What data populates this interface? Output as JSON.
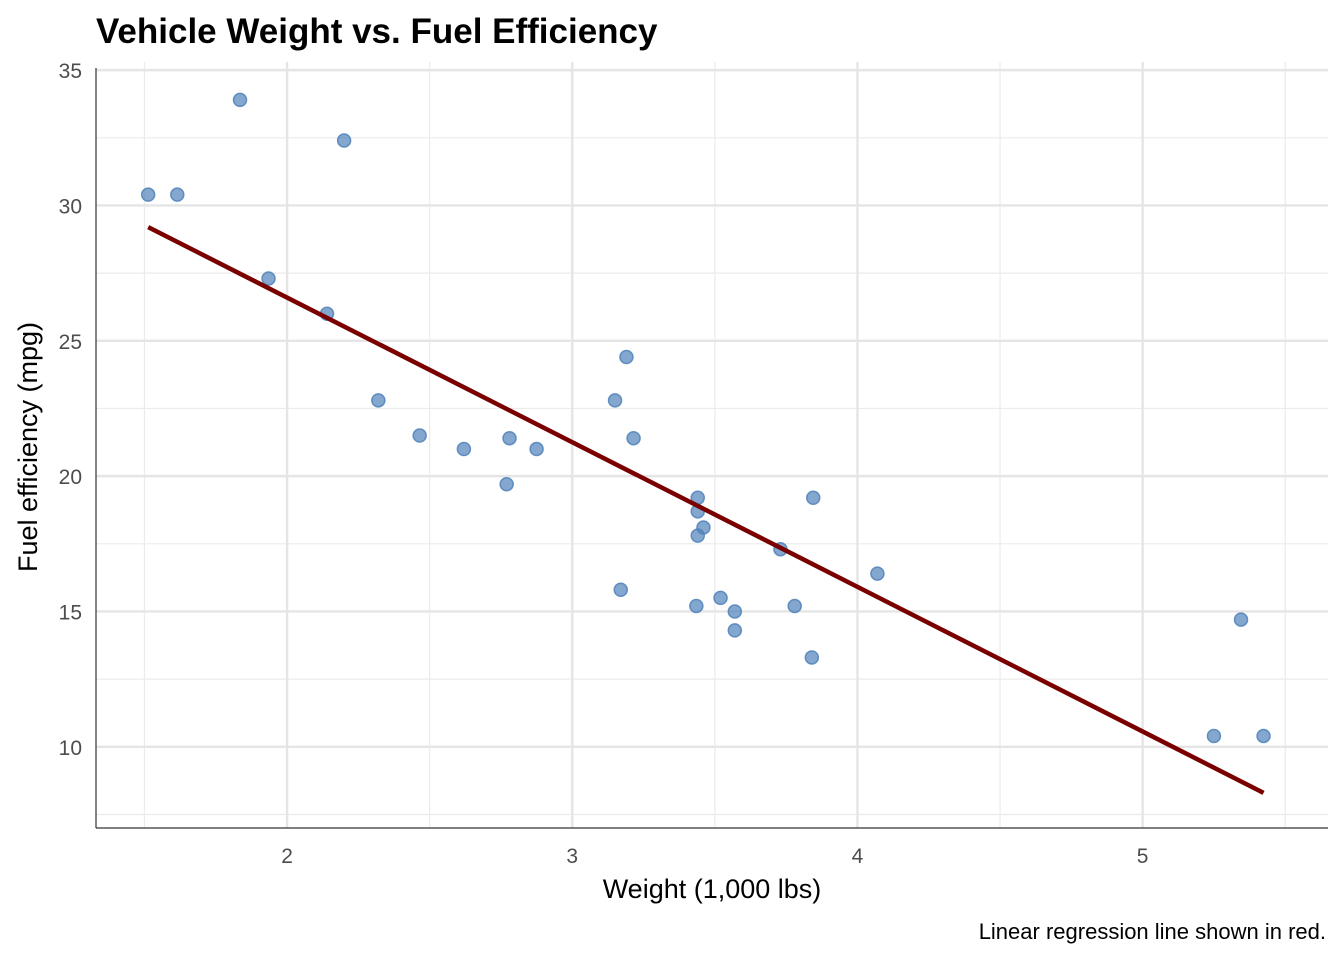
{
  "chart_data": {
    "type": "scatter",
    "title": "Vehicle Weight vs. Fuel Efficiency",
    "xlabel": "Weight (1,000 lbs)",
    "ylabel": "Fuel efficiency (mpg)",
    "caption": "Linear regression line shown in red.",
    "xlim": [
      1.33,
      5.65
    ],
    "ylim": [
      7.0,
      35.3
    ],
    "xticks": [
      2,
      3,
      4,
      5
    ],
    "xtick_labels": [
      "2",
      "3",
      "4",
      "5"
    ],
    "yticks": [
      10,
      15,
      20,
      25,
      30,
      35
    ],
    "ytick_labels": [
      "10",
      "15",
      "20",
      "25",
      "30",
      "35"
    ],
    "grid": true,
    "legend": "none",
    "point_color": "#4f81b9",
    "line_color": "#7a0000",
    "points": [
      {
        "x": 2.62,
        "y": 21.0
      },
      {
        "x": 2.875,
        "y": 21.0
      },
      {
        "x": 2.32,
        "y": 22.8
      },
      {
        "x": 3.215,
        "y": 21.4
      },
      {
        "x": 3.44,
        "y": 18.7
      },
      {
        "x": 3.46,
        "y": 18.1
      },
      {
        "x": 3.57,
        "y": 14.3
      },
      {
        "x": 3.19,
        "y": 24.4
      },
      {
        "x": 3.15,
        "y": 22.8
      },
      {
        "x": 3.44,
        "y": 19.2
      },
      {
        "x": 3.44,
        "y": 17.8
      },
      {
        "x": 4.07,
        "y": 16.4
      },
      {
        "x": 3.73,
        "y": 17.3
      },
      {
        "x": 3.78,
        "y": 15.2
      },
      {
        "x": 5.25,
        "y": 10.4
      },
      {
        "x": 5.424,
        "y": 10.4
      },
      {
        "x": 5.345,
        "y": 14.7
      },
      {
        "x": 2.2,
        "y": 32.4
      },
      {
        "x": 1.615,
        "y": 30.4
      },
      {
        "x": 1.835,
        "y": 33.9
      },
      {
        "x": 2.465,
        "y": 21.5
      },
      {
        "x": 3.52,
        "y": 15.5
      },
      {
        "x": 3.435,
        "y": 15.2
      },
      {
        "x": 3.84,
        "y": 13.3
      },
      {
        "x": 3.845,
        "y": 19.2
      },
      {
        "x": 1.935,
        "y": 27.3
      },
      {
        "x": 2.14,
        "y": 26.0
      },
      {
        "x": 1.513,
        "y": 30.4
      },
      {
        "x": 3.17,
        "y": 15.8
      },
      {
        "x": 2.77,
        "y": 19.7
      },
      {
        "x": 3.57,
        "y": 15.0
      },
      {
        "x": 2.78,
        "y": 21.4
      }
    ],
    "regression": {
      "intercept": 37.285,
      "slope": -5.344,
      "x_range": [
        1.513,
        5.424
      ]
    }
  }
}
